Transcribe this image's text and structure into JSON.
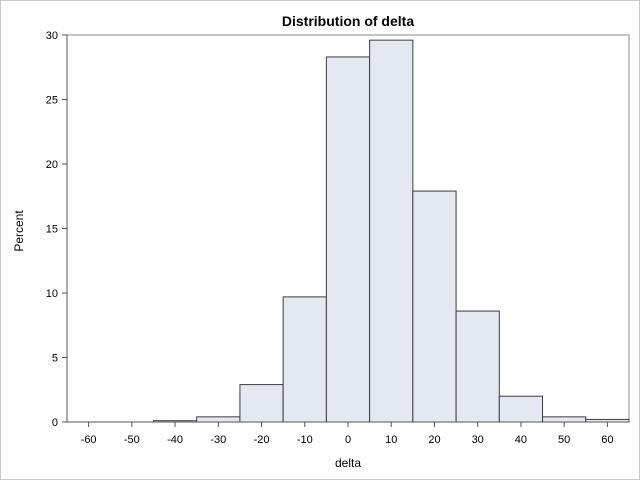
{
  "chart_data": {
    "type": "bar",
    "title": "Distribution of delta",
    "xlabel": "delta",
    "ylabel": "Percent",
    "x_ticks": [
      -60,
      -50,
      -40,
      -30,
      -20,
      -10,
      0,
      10,
      20,
      30,
      40,
      50,
      60
    ],
    "y_ticks": [
      0,
      5,
      10,
      15,
      20,
      25,
      30
    ],
    "xlim": [
      -65,
      65
    ],
    "ylim": [
      0,
      30
    ],
    "bin_width": 10,
    "bin_midpoints": [
      -40,
      -30,
      -20,
      -10,
      0,
      10,
      20,
      30,
      40,
      50,
      60
    ],
    "values": [
      0.1,
      0.4,
      2.9,
      9.7,
      28.3,
      29.6,
      17.9,
      8.6,
      2.0,
      0.4,
      0.2
    ],
    "grid": false,
    "colors": {
      "bar_fill": "#e3e8f2",
      "bar_stroke": "#3c3c3c"
    }
  }
}
